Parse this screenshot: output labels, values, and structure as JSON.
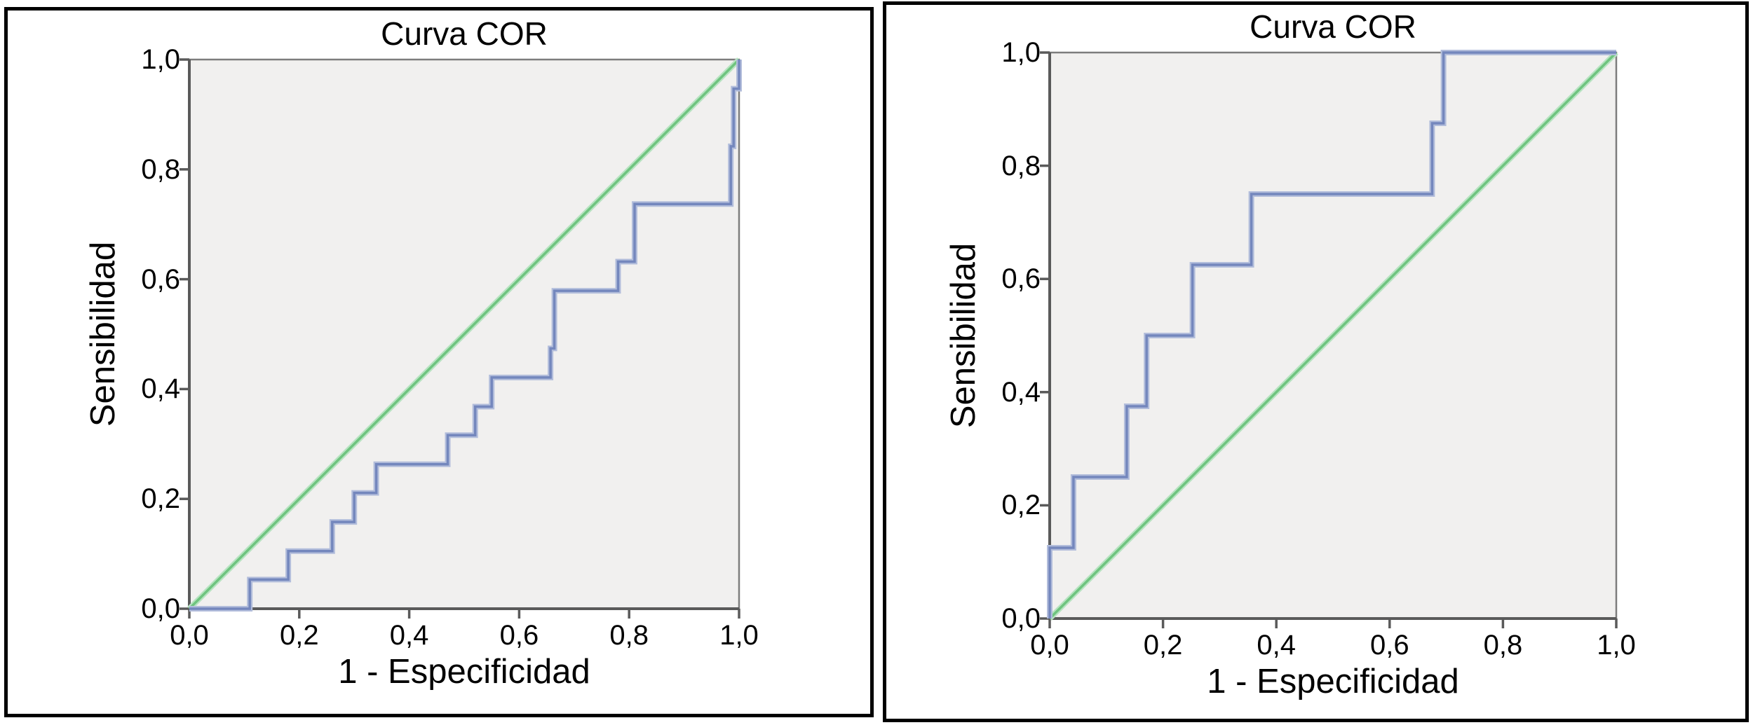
{
  "figure": {
    "description_title": "Curva COR",
    "panel_count": 2
  },
  "chart_data": [
    {
      "type": "line",
      "subtype": "roc-step-curve",
      "title": "Curva COR",
      "xlabel": "1 - Especificidad",
      "ylabel": "Sensibilidad",
      "xlim": [
        0,
        1
      ],
      "ylim": [
        0,
        1
      ],
      "grid": false,
      "legend": "none",
      "plot_bg": "#f1f0ef",
      "axis_color": "#5a5a5a",
      "frame_color": "#7d7d7d",
      "ticks": {
        "values": [
          0,
          0.2,
          0.4,
          0.6,
          0.8,
          1
        ],
        "labels": [
          "0,0",
          "0,2",
          "0,4",
          "0,6",
          "0,8",
          "1,0"
        ]
      },
      "series": [
        {
          "id": "reference-diagonal",
          "color": "#6fc47f",
          "halo": "#b7e3c1",
          "points": [
            [
              0,
              0
            ],
            [
              1,
              1
            ]
          ]
        },
        {
          "id": "roc-curve",
          "color": "#7487bd",
          "halo": "#b2bddb",
          "points": [
            [
              0,
              0
            ],
            [
              0.11,
              0
            ],
            [
              0.11,
              0.053
            ],
            [
              0.18,
              0.053
            ],
            [
              0.18,
              0.105
            ],
            [
              0.26,
              0.105
            ],
            [
              0.26,
              0.158
            ],
            [
              0.3,
              0.158
            ],
            [
              0.3,
              0.211
            ],
            [
              0.34,
              0.211
            ],
            [
              0.34,
              0.263
            ],
            [
              0.47,
              0.263
            ],
            [
              0.47,
              0.316
            ],
            [
              0.52,
              0.316
            ],
            [
              0.52,
              0.368
            ],
            [
              0.55,
              0.368
            ],
            [
              0.55,
              0.421
            ],
            [
              0.657,
              0.421
            ],
            [
              0.657,
              0.474
            ],
            [
              0.664,
              0.474
            ],
            [
              0.664,
              0.579
            ],
            [
              0.78,
              0.579
            ],
            [
              0.78,
              0.632
            ],
            [
              0.81,
              0.632
            ],
            [
              0.81,
              0.737
            ],
            [
              0.985,
              0.737
            ],
            [
              0.985,
              0.842
            ],
            [
              0.99,
              0.842
            ],
            [
              0.99,
              0.947
            ],
            [
              1,
              0.947
            ],
            [
              1,
              1
            ]
          ]
        }
      ]
    },
    {
      "type": "line",
      "subtype": "roc-step-curve",
      "title": "Curva COR",
      "xlabel": "1 - Especificidad",
      "ylabel": "Sensibilidad",
      "xlim": [
        0,
        1
      ],
      "ylim": [
        0,
        1
      ],
      "grid": false,
      "legend": "none",
      "plot_bg": "#f1f0ef",
      "axis_color": "#5a5a5a",
      "frame_color": "#7d7d7d",
      "ticks": {
        "values": [
          0,
          0.2,
          0.4,
          0.6,
          0.8,
          1
        ],
        "labels": [
          "0,0",
          "0,2",
          "0,4",
          "0,6",
          "0,8",
          "1,0"
        ]
      },
      "series": [
        {
          "id": "reference-diagonal",
          "color": "#6fc47f",
          "halo": "#b7e3c1",
          "points": [
            [
              0,
              0
            ],
            [
              1,
              1
            ]
          ]
        },
        {
          "id": "roc-curve",
          "color": "#7487bd",
          "halo": "#b2bddb",
          "points": [
            [
              0,
              0
            ],
            [
              0,
              0.125
            ],
            [
              0.042,
              0.125
            ],
            [
              0.042,
              0.25
            ],
            [
              0.136,
              0.25
            ],
            [
              0.136,
              0.375
            ],
            [
              0.171,
              0.375
            ],
            [
              0.171,
              0.5
            ],
            [
              0.252,
              0.5
            ],
            [
              0.252,
              0.625
            ],
            [
              0.356,
              0.625
            ],
            [
              0.356,
              0.75
            ],
            [
              0.675,
              0.75
            ],
            [
              0.675,
              0.875
            ],
            [
              0.695,
              0.875
            ],
            [
              0.695,
              1
            ],
            [
              1,
              1
            ]
          ]
        }
      ]
    }
  ]
}
